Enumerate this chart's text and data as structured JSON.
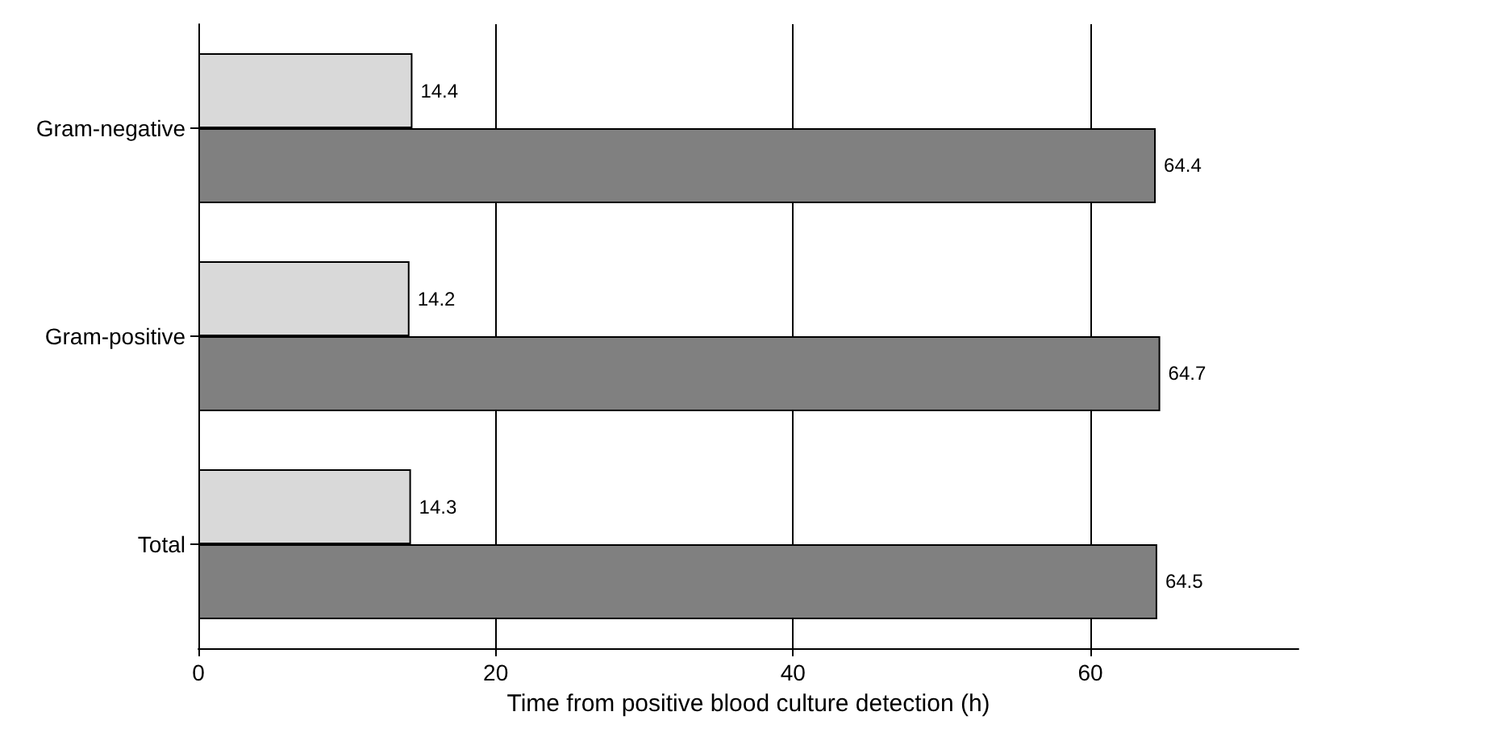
{
  "chart_data": {
    "type": "bar",
    "orientation": "horizontal",
    "xlabel": "Time from positive blood culture detection (h)",
    "categories": [
      "Gram-negative",
      "Gram-positive",
      "Total"
    ],
    "series": [
      {
        "color": "#d9d9d9",
        "values": [
          14.4,
          14.2,
          14.3
        ]
      },
      {
        "color": "#808080",
        "values": [
          64.4,
          64.7,
          64.5
        ]
      }
    ],
    "xlim": [
      0,
      74
    ],
    "xticks": [
      0,
      20,
      40,
      60
    ],
    "grid": "x",
    "data_labels": true
  }
}
